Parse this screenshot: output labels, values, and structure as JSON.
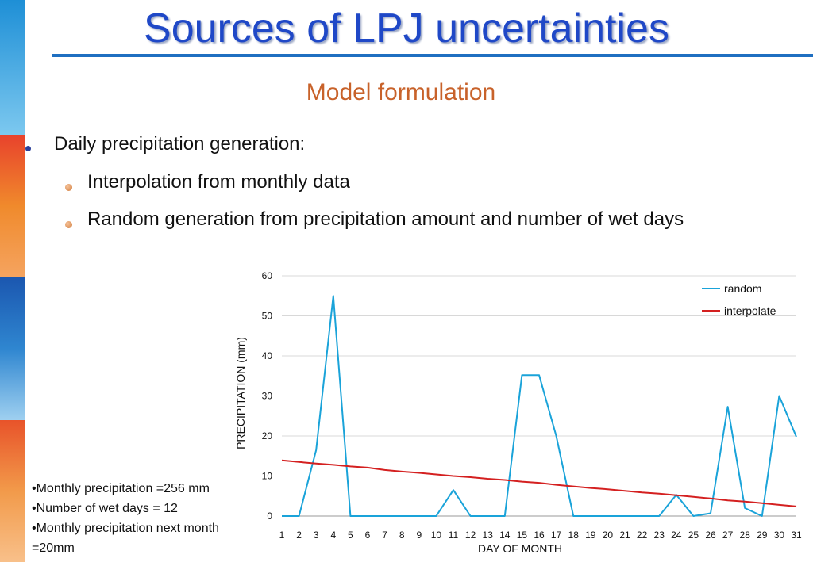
{
  "slide": {
    "title": "Sources of LPJ uncertainties",
    "subtitle": "Model formulation",
    "bullet": "Daily precipitation generation:",
    "sub_bullets": [
      "Interpolation from monthly data",
      "Random generation from precipitation amount and number of wet days"
    ],
    "notes": [
      "•Monthly precipitation =256 mm",
      "•Number of wet days = 12",
      "•Monthly precipitation next month =20mm"
    ]
  },
  "colors": {
    "title": "#1f48c7",
    "subtitle": "#c8622a",
    "random": "#1aa3d9",
    "interpolate": "#d42020"
  },
  "chart_data": {
    "type": "line",
    "title": "",
    "xlabel": "DAY OF MONTH",
    "ylabel": "PRECIPITATION (mm)",
    "ylim": [
      0,
      60
    ],
    "yticks": [
      0,
      10,
      20,
      30,
      40,
      50,
      60
    ],
    "grid": true,
    "legend": "top-right",
    "x": [
      1,
      2,
      3,
      4,
      5,
      6,
      7,
      8,
      9,
      10,
      11,
      12,
      13,
      14,
      15,
      16,
      17,
      18,
      19,
      20,
      21,
      22,
      23,
      24,
      25,
      26,
      27,
      28,
      29,
      30,
      31
    ],
    "series": [
      {
        "name": "random",
        "color": "#1aa3d9",
        "values": [
          0,
          0,
          16.5,
          55,
          0,
          0,
          0,
          0,
          0,
          0,
          6.5,
          0,
          0,
          0,
          35.2,
          35.2,
          20,
          0,
          0,
          0,
          0,
          0,
          0,
          5.3,
          0,
          0.7,
          27.3,
          2,
          0,
          30,
          19.8
        ]
      },
      {
        "name": "interpolate",
        "color": "#d42020",
        "values": [
          13.9,
          13.5,
          13.1,
          12.8,
          12.4,
          12.1,
          11.5,
          11.1,
          10.8,
          10.4,
          10,
          9.7,
          9.3,
          9,
          8.6,
          8.3,
          7.8,
          7.4,
          7,
          6.7,
          6.3,
          5.9,
          5.6,
          5.2,
          4.8,
          4.4,
          3.9,
          3.6,
          3.2,
          2.8,
          2.4
        ]
      }
    ]
  }
}
